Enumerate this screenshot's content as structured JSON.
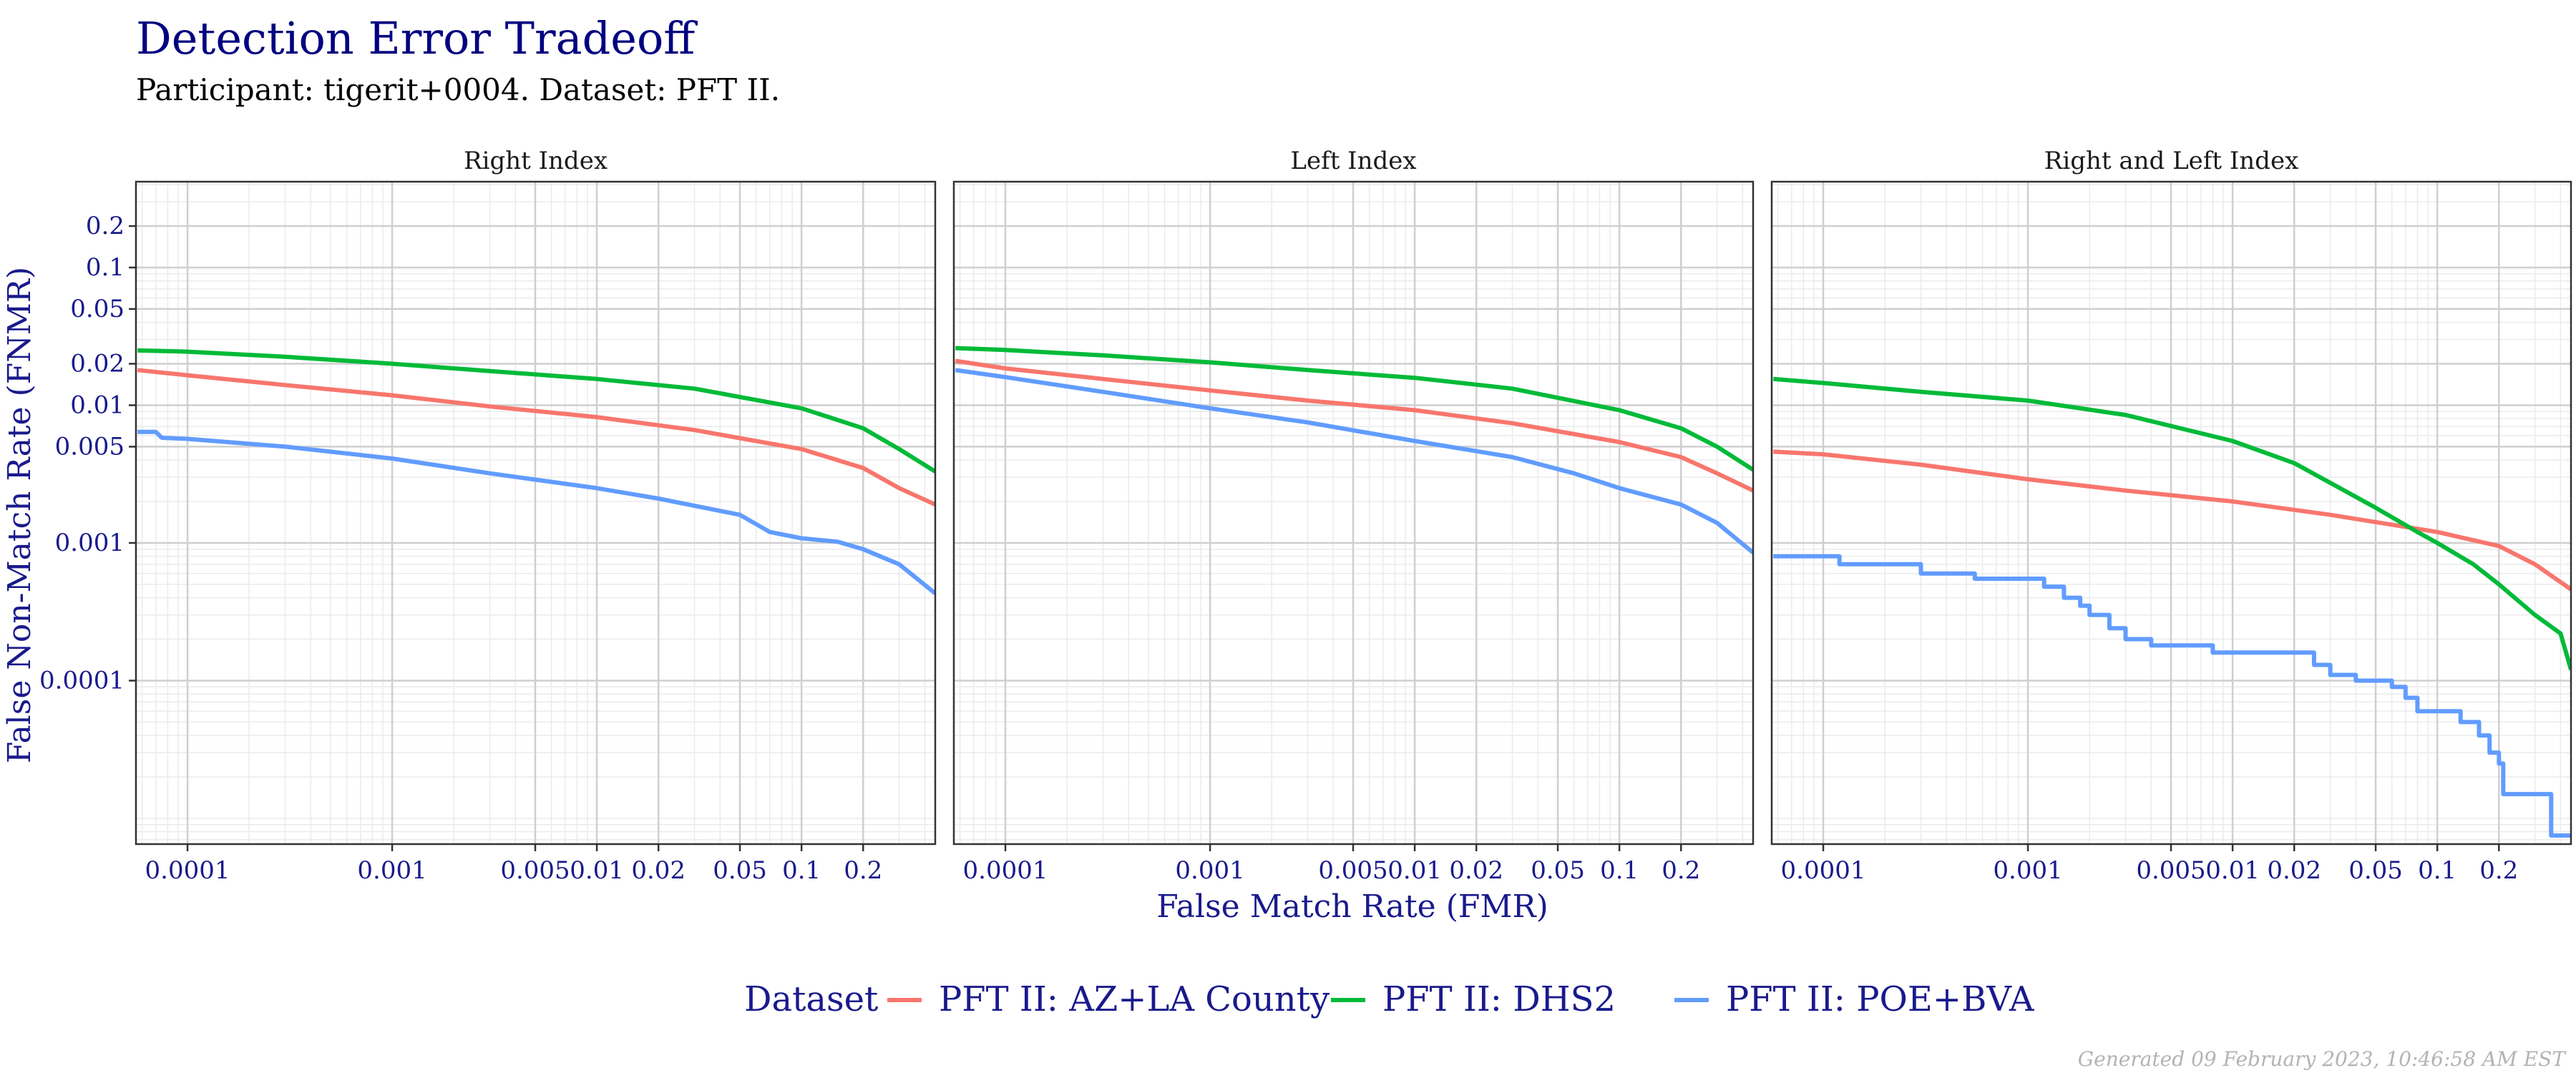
{
  "title": "Detection Error Tradeoff",
  "subtitle": "Participant: tigerit+0004. Dataset: PFT II.",
  "footer": "Generated 09 February 2023, 10:46:58 AM EST",
  "colors": {
    "title": "#000080",
    "axis_text": "#1a1a8c",
    "strip_text": "#1a1a1a",
    "panel_border": "#333333",
    "grid_major": "#cfcfcf",
    "grid_minor": "#ebebeb",
    "footer": "#b3b3b3"
  },
  "chart_data": {
    "type": "line",
    "xlabel": "False Match Rate (FMR)",
    "ylabel": "False Non-Match Rate (FNMR)",
    "xscale": "log",
    "yscale": "log",
    "xlim": [
      5.6e-05,
      0.45
    ],
    "ylim": [
      6.5e-06,
      0.42
    ],
    "x_ticks": [
      {
        "value": 0.0001,
        "label": "0.0001"
      },
      {
        "value": 0.001,
        "label": "0.001"
      },
      {
        "value": 0.005,
        "label": "0.005"
      },
      {
        "value": 0.01,
        "label": "0.01"
      },
      {
        "value": 0.02,
        "label": "0.02"
      },
      {
        "value": 0.05,
        "label": "0.05"
      },
      {
        "value": 0.1,
        "label": "0.1"
      },
      {
        "value": 0.2,
        "label": "0.2"
      }
    ],
    "y_ticks": [
      {
        "value": 0.0001,
        "label": "0.0001"
      },
      {
        "value": 0.001,
        "label": "0.001"
      },
      {
        "value": 0.005,
        "label": "0.005"
      },
      {
        "value": 0.01,
        "label": "0.01"
      },
      {
        "value": 0.02,
        "label": "0.02"
      },
      {
        "value": 0.05,
        "label": "0.05"
      },
      {
        "value": 0.1,
        "label": "0.1"
      },
      {
        "value": 0.2,
        "label": "0.2"
      }
    ],
    "grid": true,
    "legend": {
      "title": "Dataset",
      "position": "bottom",
      "entries": [
        {
          "name": "PFT II: AZ+LA County",
          "color": "#F8766D"
        },
        {
          "name": "PFT II: DHS2",
          "color": "#00BA38"
        },
        {
          "name": "PFT II: POE+BVA",
          "color": "#619CFF"
        }
      ]
    },
    "panels": [
      {
        "name": "Right Index",
        "series": [
          {
            "name": "PFT II: AZ+LA County",
            "color": "#F8766D",
            "step": false,
            "points": [
              [
                5.7e-05,
                0.018
              ],
              [
                0.0001,
                0.0165
              ],
              [
                0.0003,
                0.014
              ],
              [
                0.001,
                0.0118
              ],
              [
                0.003,
                0.0098
              ],
              [
                0.01,
                0.0082
              ],
              [
                0.03,
                0.0066
              ],
              [
                0.1,
                0.0048
              ],
              [
                0.2,
                0.0035
              ],
              [
                0.3,
                0.0025
              ],
              [
                0.45,
                0.0019
              ]
            ]
          },
          {
            "name": "PFT II: DHS2",
            "color": "#00BA38",
            "step": false,
            "points": [
              [
                5.7e-05,
                0.025
              ],
              [
                0.0001,
                0.0245
              ],
              [
                0.0003,
                0.0225
              ],
              [
                0.001,
                0.02
              ],
              [
                0.003,
                0.0177
              ],
              [
                0.01,
                0.0155
              ],
              [
                0.03,
                0.0132
              ],
              [
                0.1,
                0.0095
              ],
              [
                0.2,
                0.0068
              ],
              [
                0.3,
                0.0048
              ],
              [
                0.45,
                0.0033
              ]
            ]
          },
          {
            "name": "PFT II: POE+BVA",
            "color": "#619CFF",
            "step": false,
            "points": [
              [
                5.7e-05,
                0.0064
              ],
              [
                7e-05,
                0.0064
              ],
              [
                7.5e-05,
                0.0058
              ],
              [
                0.0001,
                0.0057
              ],
              [
                0.0003,
                0.005
              ],
              [
                0.001,
                0.0041
              ],
              [
                0.003,
                0.0032
              ],
              [
                0.01,
                0.0025
              ],
              [
                0.02,
                0.0021
              ],
              [
                0.05,
                0.0016
              ],
              [
                0.07,
                0.0012
              ],
              [
                0.1,
                0.00108
              ],
              [
                0.15,
                0.00102
              ],
              [
                0.2,
                0.0009
              ],
              [
                0.3,
                0.0007
              ],
              [
                0.45,
                0.00043
              ]
            ]
          }
        ]
      },
      {
        "name": "Left Index",
        "series": [
          {
            "name": "PFT II: AZ+LA County",
            "color": "#F8766D",
            "step": false,
            "points": [
              [
                5.7e-05,
                0.021
              ],
              [
                0.0001,
                0.0185
              ],
              [
                0.0003,
                0.0155
              ],
              [
                0.001,
                0.0128
              ],
              [
                0.003,
                0.0108
              ],
              [
                0.01,
                0.0092
              ],
              [
                0.03,
                0.0074
              ],
              [
                0.1,
                0.0054
              ],
              [
                0.2,
                0.0042
              ],
              [
                0.3,
                0.0032
              ],
              [
                0.45,
                0.0024
              ]
            ]
          },
          {
            "name": "PFT II: DHS2",
            "color": "#00BA38",
            "step": false,
            "points": [
              [
                5.7e-05,
                0.026
              ],
              [
                0.0001,
                0.0252
              ],
              [
                0.0003,
                0.023
              ],
              [
                0.001,
                0.0205
              ],
              [
                0.003,
                0.018
              ],
              [
                0.01,
                0.0158
              ],
              [
                0.03,
                0.0132
              ],
              [
                0.1,
                0.0092
              ],
              [
                0.2,
                0.0068
              ],
              [
                0.3,
                0.005
              ],
              [
                0.45,
                0.0034
              ]
            ]
          },
          {
            "name": "PFT II: POE+BVA",
            "color": "#619CFF",
            "step": false,
            "points": [
              [
                5.7e-05,
                0.018
              ],
              [
                0.0001,
                0.016
              ],
              [
                0.0003,
                0.0125
              ],
              [
                0.001,
                0.0095
              ],
              [
                0.003,
                0.0075
              ],
              [
                0.01,
                0.0055
              ],
              [
                0.03,
                0.0042
              ],
              [
                0.06,
                0.0032
              ],
              [
                0.1,
                0.0025
              ],
              [
                0.2,
                0.0019
              ],
              [
                0.3,
                0.0014
              ],
              [
                0.45,
                0.00085
              ]
            ]
          }
        ]
      },
      {
        "name": "Right and Left Index",
        "series": [
          {
            "name": "PFT II: AZ+LA County",
            "color": "#F8766D",
            "step": false,
            "points": [
              [
                5.7e-05,
                0.0046
              ],
              [
                0.0001,
                0.0044
              ],
              [
                0.0003,
                0.0037
              ],
              [
                0.001,
                0.0029
              ],
              [
                0.003,
                0.0024
              ],
              [
                0.01,
                0.002
              ],
              [
                0.03,
                0.0016
              ],
              [
                0.1,
                0.0012
              ],
              [
                0.2,
                0.00095
              ],
              [
                0.3,
                0.0007
              ],
              [
                0.45,
                0.00046
              ]
            ]
          },
          {
            "name": "PFT II: DHS2",
            "color": "#00BA38",
            "step": false,
            "points": [
              [
                5.7e-05,
                0.0155
              ],
              [
                0.0001,
                0.0145
              ],
              [
                0.0003,
                0.0125
              ],
              [
                0.001,
                0.0108
              ],
              [
                0.003,
                0.0085
              ],
              [
                0.01,
                0.0055
              ],
              [
                0.02,
                0.0038
              ],
              [
                0.05,
                0.0018
              ],
              [
                0.08,
                0.0012
              ],
              [
                0.1,
                0.001
              ],
              [
                0.15,
                0.0007
              ],
              [
                0.2,
                0.0005
              ],
              [
                0.3,
                0.0003
              ],
              [
                0.4,
                0.00022
              ],
              [
                0.45,
                0.00012
              ]
            ]
          },
          {
            "name": "PFT II: POE+BVA",
            "color": "#619CFF",
            "step": true,
            "points": [
              [
                5.7e-05,
                0.0008
              ],
              [
                0.0001,
                0.0008
              ],
              [
                0.00012,
                0.0007
              ],
              [
                0.00025,
                0.0007
              ],
              [
                0.0003,
                0.0006
              ],
              [
                0.00055,
                0.00055
              ],
              [
                0.0012,
                0.00048
              ],
              [
                0.0015,
                0.0004
              ],
              [
                0.0018,
                0.00035
              ],
              [
                0.002,
                0.0003
              ],
              [
                0.0025,
                0.00024
              ],
              [
                0.003,
                0.0002
              ],
              [
                0.004,
                0.00018
              ],
              [
                0.008,
                0.00016
              ],
              [
                0.02,
                0.00016
              ],
              [
                0.025,
                0.00013
              ],
              [
                0.03,
                0.00011
              ],
              [
                0.04,
                0.0001
              ],
              [
                0.06,
                9e-05
              ],
              [
                0.07,
                7.5e-05
              ],
              [
                0.08,
                6e-05
              ],
              [
                0.1,
                6e-05
              ],
              [
                0.13,
                5e-05
              ],
              [
                0.16,
                4e-05
              ],
              [
                0.18,
                3e-05
              ],
              [
                0.2,
                2.5e-05
              ],
              [
                0.21,
                1.5e-05
              ],
              [
                0.35,
                1.5e-05
              ],
              [
                0.36,
                7.5e-06
              ],
              [
                0.45,
                7.5e-06
              ]
            ]
          }
        ]
      }
    ]
  }
}
